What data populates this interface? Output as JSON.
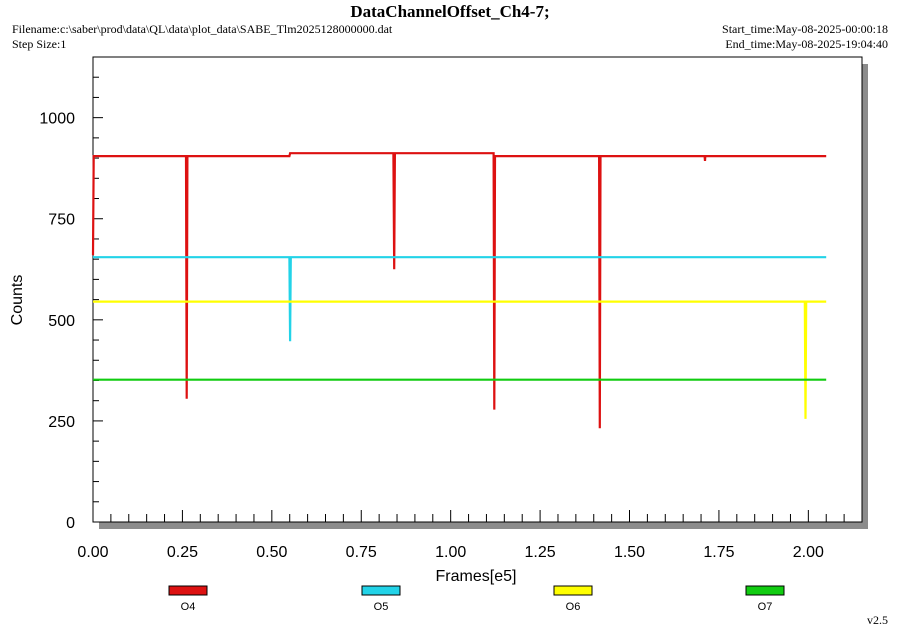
{
  "header": {
    "title": "DataChannelOffset_Ch4-7;",
    "filename": "Filename:c:\\saber\\prod\\data\\QL\\data\\plot_data\\SABE_Tlm2025128000000.dat",
    "step_size": "Step Size:1",
    "start_time": "Start_time:May-08-2025-00:00:18",
    "end_time": "End_time:May-08-2025-19:04:40"
  },
  "version": "v2.5",
  "chart_data": {
    "type": "line",
    "title": "DataChannelOffset_Ch4-7;",
    "xlabel": "Frames[e5]",
    "ylabel": "Counts",
    "xlim": [
      0,
      2.15
    ],
    "ylim": [
      0,
      1150
    ],
    "xticks": [
      0.0,
      0.25,
      0.5,
      0.75,
      1.0,
      1.25,
      1.5,
      1.75,
      2.0
    ],
    "xtick_labels": [
      "0.00",
      "0.25",
      "0.50",
      "0.75",
      "1.00",
      "1.25",
      "1.50",
      "1.75",
      "2.00"
    ],
    "yticks": [
      0,
      250,
      500,
      750,
      1000
    ],
    "ytick_labels": [
      "0",
      "250",
      "500",
      "750",
      "1000"
    ],
    "legend_position": "bottom",
    "series": [
      {
        "name": "O4",
        "color": "#dd1111",
        "x": [
          0.0,
          0.002,
          0.004,
          0.26,
          0.262,
          0.264,
          0.549,
          0.551,
          0.84,
          0.842,
          0.844,
          1.12,
          1.122,
          1.124,
          1.415,
          1.417,
          1.419,
          1.71,
          1.711,
          1.712,
          2.05
        ],
        "y": [
          660,
          905,
          905,
          905,
          305,
          905,
          905,
          912,
          912,
          625,
          912,
          912,
          278,
          905,
          905,
          232,
          905,
          905,
          893,
          905,
          905
        ]
      },
      {
        "name": "O5",
        "color": "#22d3e8",
        "x": [
          0.0,
          0.549,
          0.551,
          0.553,
          2.05
        ],
        "y": [
          655,
          655,
          447,
          655,
          655
        ]
      },
      {
        "name": "O6",
        "color": "#ffff00",
        "x": [
          0.0,
          1.99,
          1.992,
          1.994,
          2.05
        ],
        "y": [
          545,
          545,
          255,
          545,
          545
        ]
      },
      {
        "name": "O7",
        "color": "#11cc11",
        "x": [
          0.0,
          2.05
        ],
        "y": [
          352,
          352
        ]
      }
    ]
  }
}
